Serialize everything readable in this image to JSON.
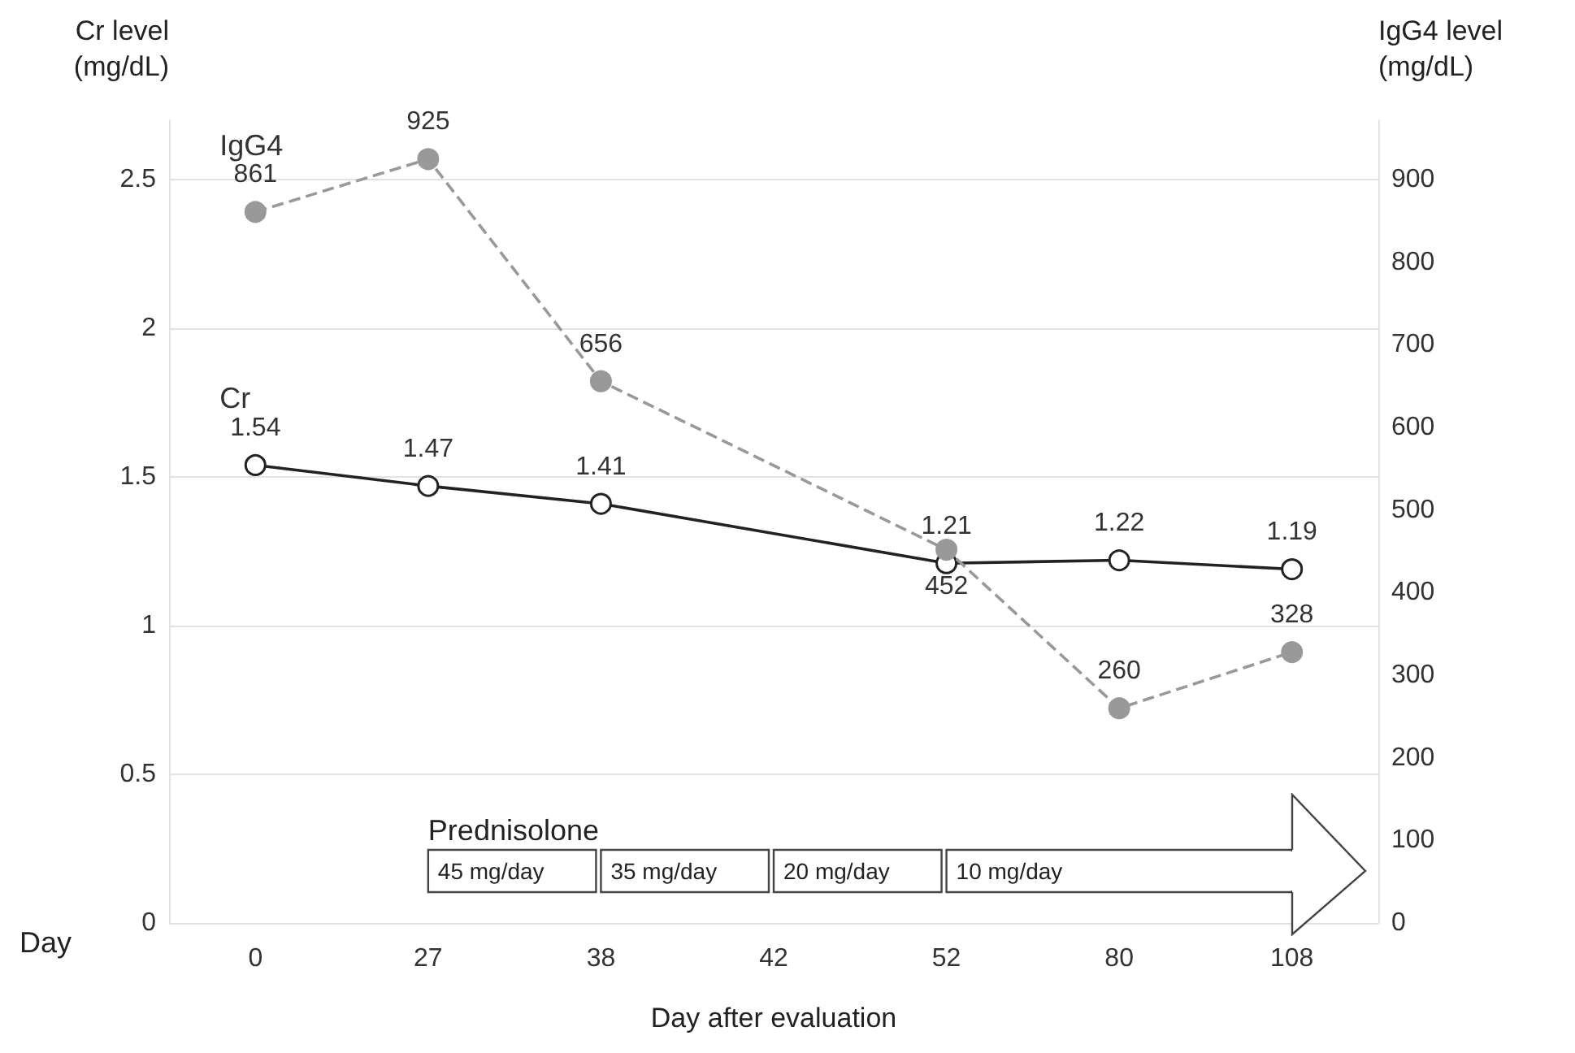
{
  "chart_data": {
    "type": "line",
    "xlabel": "Day after evaluation",
    "ylabel": "Cr level\n(mg/dL)",
    "y2label": "IgG4 level\n(mg/dL)",
    "categories": [
      "0",
      "27",
      "38",
      "42",
      "52",
      "80",
      "108"
    ],
    "series": [
      {
        "name": "Cr",
        "color": "#222222",
        "values": [
          1.54,
          1.47,
          1.41,
          null,
          1.21,
          1.22,
          1.19
        ],
        "marker": "circle",
        "line_style": "solid"
      },
      {
        "name": "IgG4",
        "color": "#999999",
        "axis": "y2",
        "values": [
          861,
          925,
          656,
          null,
          452,
          260,
          328
        ],
        "marker": "circle",
        "line_style": "dashed"
      }
    ],
    "ylim": [
      0,
      2.7
    ],
    "yticks": [
      0,
      0.5,
      1,
      1.5,
      2,
      2.5
    ],
    "y2lim": [
      0,
      972
    ],
    "y2ticks": [
      0,
      100,
      200,
      300,
      400,
      500,
      600,
      700,
      800,
      900
    ],
    "grid": "y",
    "legend": false,
    "data_labels": true,
    "bands": [
      {
        "axis": "x",
        "from": "27",
        "to": "38",
        "label": "45 mg/day"
      },
      {
        "axis": "x",
        "from": "38",
        "to": "42",
        "label": "35 mg/day"
      },
      {
        "axis": "x",
        "from": "42",
        "to": "52",
        "label": "20 mg/day"
      },
      {
        "axis": "x",
        "from": "52",
        "to": "108",
        "label": "10 mg/day"
      }
    ],
    "annotations": [
      "Day",
      "Prednisolone"
    ]
  }
}
